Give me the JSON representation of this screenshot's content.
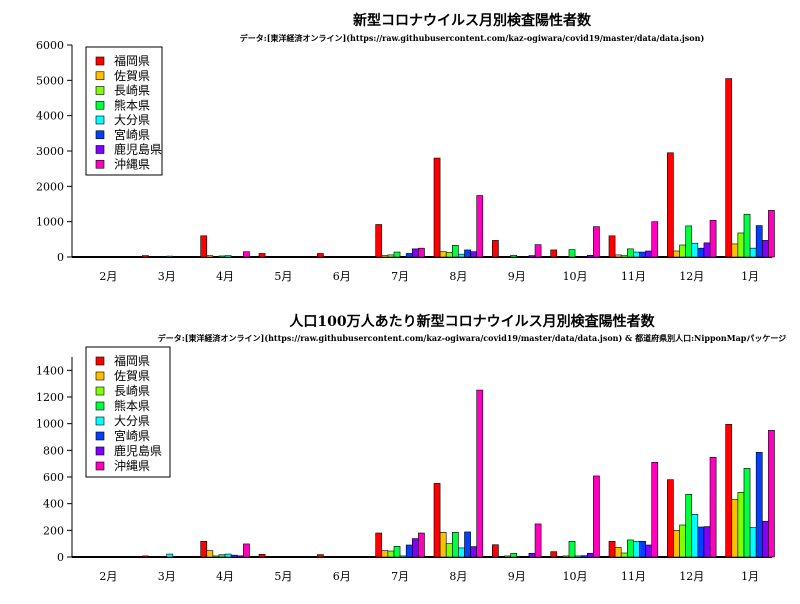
{
  "chart_data": [
    {
      "type": "bar",
      "title": "新型コロナウイルス月別検査陽性者数",
      "subtitle": "データ:[東洋経済オンライン](https://raw.githubusercontent.com/kaz-ogiwara/covid19/master/data/data.json)",
      "xlabel": "",
      "ylabel": "",
      "categories": [
        "2月",
        "3月",
        "4月",
        "5月",
        "6月",
        "7月",
        "8月",
        "9月",
        "10月",
        "11月",
        "12月",
        "1月"
      ],
      "ylim": [
        0,
        6000
      ],
      "yticks": [
        0,
        1000,
        2000,
        3000,
        4000,
        5000,
        6000
      ],
      "grid": false,
      "legend_position": "top-left",
      "series": [
        {
          "name": "福岡県",
          "color": "#ff0000",
          "values": [
            2,
            40,
            600,
            100,
            100,
            920,
            2800,
            470,
            200,
            600,
            2950,
            5050
          ]
        },
        {
          "name": "佐賀県",
          "color": "#ffbf00",
          "values": [
            0,
            0,
            40,
            0,
            0,
            40,
            150,
            0,
            0,
            60,
            170,
            370
          ]
        },
        {
          "name": "長崎県",
          "color": "#80ff00",
          "values": [
            0,
            0,
            10,
            0,
            0,
            60,
            130,
            10,
            10,
            40,
            340,
            680
          ]
        },
        {
          "name": "熊本県",
          "color": "#00ff40",
          "values": [
            0,
            10,
            30,
            0,
            0,
            140,
            330,
            50,
            210,
            230,
            880,
            1210
          ]
        },
        {
          "name": "大分県",
          "color": "#00ffff",
          "values": [
            0,
            25,
            40,
            0,
            0,
            10,
            80,
            0,
            10,
            140,
            390,
            250
          ]
        },
        {
          "name": "宮崎県",
          "color": "#0040ff",
          "values": [
            0,
            0,
            15,
            0,
            0,
            100,
            200,
            0,
            10,
            140,
            250,
            890
          ]
        },
        {
          "name": "鹿児島県",
          "color": "#7f00ff",
          "values": [
            0,
            0,
            15,
            0,
            0,
            230,
            150,
            40,
            50,
            170,
            400,
            470
          ]
        },
        {
          "name": "沖縄県",
          "color": "#ff00bf",
          "values": [
            0,
            0,
            150,
            0,
            0,
            250,
            1740,
            350,
            860,
            1000,
            1040,
            1320
          ]
        }
      ]
    },
    {
      "type": "bar",
      "title": "人口100万人あたり新型コロナウイルス月別検査陽性者数",
      "subtitle": "データ:[東洋経済オンライン](https://raw.githubusercontent.com/kaz-ogiwara/covid19/master/data/data.json) & 都道府県別人口:NipponMapパッケージ",
      "xlabel": "",
      "ylabel": "",
      "categories": [
        "2月",
        "3月",
        "4月",
        "5月",
        "6月",
        "7月",
        "8月",
        "9月",
        "10月",
        "11月",
        "12月",
        "1月"
      ],
      "ylim": [
        0,
        1500
      ],
      "yticks": [
        0,
        200,
        400,
        600,
        800,
        1000,
        1200,
        1400
      ],
      "grid": false,
      "legend_position": "top-left",
      "series": [
        {
          "name": "福岡県",
          "color": "#ff0000",
          "values": [
            0,
            8,
            118,
            20,
            18,
            180,
            552,
            92,
            40,
            118,
            580,
            995
          ]
        },
        {
          "name": "佐賀県",
          "color": "#ffbf00",
          "values": [
            0,
            0,
            48,
            0,
            0,
            48,
            185,
            0,
            0,
            72,
            200,
            430
          ]
        },
        {
          "name": "長崎県",
          "color": "#80ff00",
          "values": [
            0,
            0,
            8,
            0,
            0,
            45,
            100,
            8,
            8,
            30,
            240,
            485
          ]
        },
        {
          "name": "熊本県",
          "color": "#00ff40",
          "values": [
            0,
            5,
            17,
            0,
            0,
            80,
            185,
            28,
            118,
            128,
            470,
            665
          ]
        },
        {
          "name": "大分県",
          "color": "#00ffff",
          "values": [
            0,
            22,
            22,
            0,
            0,
            8,
            68,
            0,
            8,
            118,
            320,
            220
          ]
        },
        {
          "name": "宮崎県",
          "color": "#0040ff",
          "values": [
            0,
            0,
            14,
            0,
            0,
            90,
            188,
            0,
            10,
            118,
            225,
            785
          ]
        },
        {
          "name": "鹿児島県",
          "color": "#7f00ff",
          "values": [
            0,
            0,
            9,
            0,
            0,
            138,
            78,
            28,
            28,
            90,
            228,
            268
          ]
        },
        {
          "name": "沖縄県",
          "color": "#ff00bf",
          "values": [
            0,
            0,
            98,
            0,
            0,
            180,
            1252,
            248,
            608,
            710,
            748,
            950
          ]
        }
      ]
    }
  ]
}
